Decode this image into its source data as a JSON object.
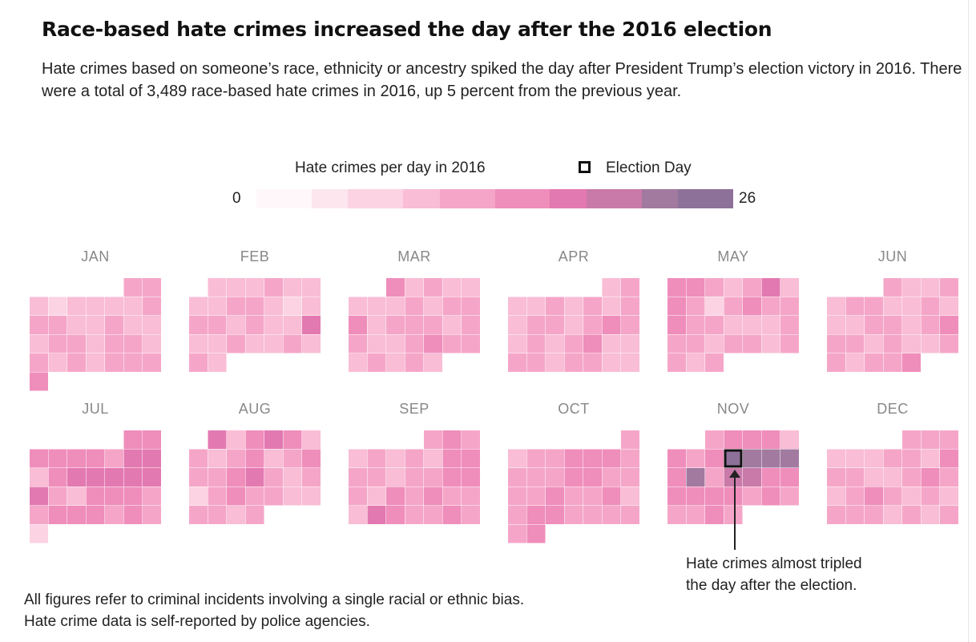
{
  "title": "Race-based hate crimes increased the day after the 2016 election",
  "subtitle": "Hate crimes based on someone’s race, ethnicity or ancestry spiked the day after President Trump’s election victory in 2016. There were a total of 3,489 race-based hate crimes in 2016, up 5 percent from the previous year.",
  "legend": {
    "title": "Hate crimes per day in 2016",
    "marker_label": "Election Day",
    "min_label": "0",
    "max_label": "26",
    "colors": [
      "#fff7f9",
      "#fde6ee",
      "#fbd3e2",
      "#f9bdd5",
      "#f5a6c8",
      "#ef8dbb",
      "#e379b1",
      "#c97aa9",
      "#a27aa0",
      "#8e7199"
    ]
  },
  "note": "All figures refer to criminal incidents involving a single racial or ethnic bias. Hate crime data is self-reported by police agencies.",
  "annotation": "Hate crimes almost tripled the day after the election.",
  "chart_data": {
    "type": "heatmap",
    "year": 2016,
    "value_range": [
      0,
      26
    ],
    "highlight": {
      "month": "NOV",
      "day": 9,
      "label": "Election Day"
    },
    "months": [
      {
        "label": "JAN",
        "days": 31,
        "first_weekday": 5,
        "values": [
          11,
          11,
          10,
          7,
          9,
          8,
          9,
          9,
          12,
          11,
          11,
          9,
          8,
          11,
          10,
          8,
          9,
          12,
          11,
          8,
          12,
          12,
          10,
          12,
          10,
          11,
          9,
          12,
          11,
          11,
          13
        ]
      },
      {
        "label": "FEB",
        "days": 29,
        "first_weekday": 1,
        "values": [
          9,
          10,
          8,
          11,
          9,
          9,
          8,
          10,
          12,
          11,
          9,
          7,
          10,
          11,
          12,
          10,
          11,
          9,
          10,
          16,
          10,
          9,
          11,
          10,
          9,
          11,
          8,
          12,
          10
        ]
      },
      {
        "label": "MAR",
        "days": 31,
        "first_weekday": 2,
        "values": [
          14,
          10,
          11,
          10,
          10,
          8,
          9,
          8,
          11,
          10,
          12,
          11,
          13,
          10,
          11,
          12,
          11,
          8,
          12,
          12,
          9,
          10,
          11,
          13,
          12,
          11,
          10,
          12,
          9,
          11,
          10
        ]
      },
      {
        "label": "APR",
        "days": 30,
        "first_weekday": 5,
        "values": [
          9,
          11,
          10,
          10,
          11,
          9,
          12,
          10,
          12,
          9,
          11,
          12,
          10,
          12,
          13,
          11,
          10,
          12,
          9,
          11,
          13,
          10,
          9,
          11,
          12,
          10,
          12,
          11,
          10,
          9
        ]
      },
      {
        "label": "MAY",
        "days": 31,
        "first_weekday": 0,
        "values": [
          13,
          13,
          12,
          9,
          11,
          16,
          9,
          13,
          12,
          6,
          11,
          15,
          12,
          11,
          13,
          12,
          11,
          10,
          9,
          10,
          11,
          12,
          11,
          10,
          12,
          11,
          10,
          11,
          11,
          10,
          12
        ]
      },
      {
        "label": "JUN",
        "days": 30,
        "first_weekday": 3,
        "values": [
          11,
          10,
          9,
          11,
          9,
          12,
          11,
          10,
          10,
          12,
          10,
          9,
          10,
          11,
          12,
          10,
          11,
          13,
          12,
          11,
          10,
          11,
          10,
          9,
          12,
          11,
          10,
          11,
          12,
          14
        ]
      },
      {
        "label": "JUL",
        "days": 31,
        "first_weekday": 5,
        "values": [
          14,
          15,
          13,
          14,
          14,
          14,
          12,
          18,
          17,
          10,
          15,
          16,
          16,
          17,
          17,
          18,
          16,
          12,
          8,
          13,
          14,
          15,
          12,
          11,
          13,
          15,
          14,
          12,
          14,
          12,
          7
        ]
      },
      {
        "label": "AUG",
        "days": 31,
        "first_weekday": 1,
        "values": [
          18,
          10,
          15,
          18,
          13,
          10,
          11,
          9,
          11,
          13,
          10,
          11,
          14,
          12,
          11,
          15,
          17,
          11,
          10,
          11,
          7,
          12,
          13,
          11,
          12,
          10,
          10,
          11,
          12,
          9,
          11
        ]
      },
      {
        "label": "SEP",
        "days": 31,
        "first_weekday": 4,
        "values": [
          11,
          14,
          11,
          10,
          12,
          10,
          11,
          10,
          13,
          14,
          11,
          11,
          10,
          12,
          11,
          15,
          14,
          12,
          10,
          13,
          12,
          14,
          11,
          12,
          10,
          17,
          13,
          12,
          11,
          15,
          12
        ]
      },
      {
        "label": "OCT",
        "days": 31,
        "first_weekday": 6,
        "values": [
          11,
          10,
          11,
          12,
          14,
          14,
          14,
          12,
          12,
          11,
          12,
          13,
          13,
          11,
          12,
          11,
          12,
          13,
          12,
          11,
          13,
          10,
          12,
          14,
          13,
          12,
          11,
          12,
          11,
          12,
          14
        ]
      },
      {
        "label": "NOV",
        "days": 30,
        "first_weekday": 2,
        "values": [
          12,
          13,
          14,
          14,
          10,
          13,
          12,
          14,
          24,
          22,
          21,
          23,
          14,
          22,
          12,
          19,
          20,
          14,
          14,
          15,
          15,
          13,
          14,
          12,
          14,
          11,
          11,
          12,
          15,
          12
        ]
      },
      {
        "label": "DEC",
        "days": 31,
        "first_weekday": 4,
        "values": [
          11,
          12,
          11,
          8,
          9,
          10,
          12,
          11,
          10,
          13,
          12,
          11,
          10,
          8,
          12,
          13,
          11,
          10,
          12,
          14,
          12,
          8,
          11,
          10,
          12,
          12,
          11,
          9,
          12,
          10,
          11
        ]
      }
    ]
  }
}
